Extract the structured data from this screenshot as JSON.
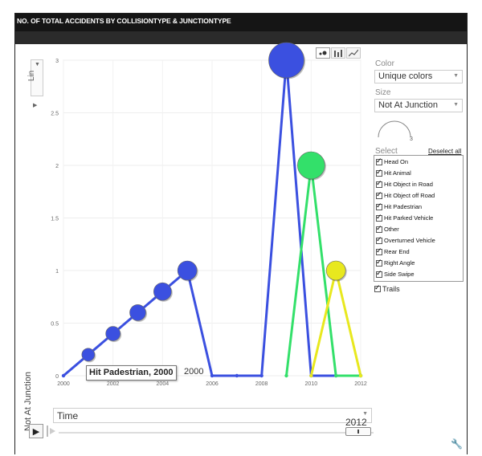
{
  "header": {
    "title": "NO. OF TOTAL ACCIDENTS BY COLLISIONTYPE & JUNCTIONTYPE"
  },
  "chart_controls": {
    "scale_label": "Lin",
    "view_icons": [
      "bubble-view-icon",
      "bar-view-icon",
      "line-view-icon"
    ]
  },
  "side_panel": {
    "color_label": "Color",
    "color_value": "Unique colors",
    "size_label": "Size",
    "size_value": "Not At Junction",
    "size_gauge_value": "3",
    "select_label": "Select",
    "deselect_all": "Deselect all",
    "items": [
      "Head On",
      "Hit Animal",
      "Hit Object in Road",
      "Hit Object off Road",
      "Hit Padestrian",
      "Hit Parked Vehicle",
      "Other",
      "Overturned Vehicle",
      "Rear End",
      "Right Angle",
      "Side Swipe"
    ],
    "trails_label": "Trails"
  },
  "playback": {
    "time_dim": "Time",
    "current_time": "2012"
  },
  "tooltip": {
    "text": "Hit Padestrian, 2000",
    "echo": "2000"
  },
  "colors": {
    "blue": "#3b50e0",
    "green": "#33e06a",
    "yellow": "#e8e81e"
  },
  "chart_data": {
    "type": "scatter",
    "subtype": "motion-bubble",
    "ylabel": "Not At Junction",
    "xlim": [
      2000,
      2012
    ],
    "ylim": [
      0,
      3
    ],
    "x_ticks": [
      "2000",
      "2002",
      "2004",
      "2006",
      "2008",
      "2010",
      "2012"
    ],
    "y_ticks": [
      "0",
      "0.5",
      "1",
      "1.5",
      "2",
      "2.5",
      "3"
    ],
    "grid": true,
    "series": [
      {
        "name": "Hit Padestrian",
        "color": "#3b50e0",
        "x": [
          2000,
          2001,
          2002,
          2003,
          2004,
          2005,
          2006,
          2007,
          2008,
          2009,
          2010,
          2011,
          2012
        ],
        "y": [
          0,
          0.2,
          0.4,
          0.6,
          0.8,
          1,
          0,
          0,
          0,
          3,
          0,
          0,
          0
        ]
      },
      {
        "color": "#33e06a",
        "x": [
          2009,
          2010,
          2011,
          2012
        ],
        "y": [
          0,
          2,
          0,
          0
        ]
      },
      {
        "color": "#e8e81e",
        "x": [
          2010,
          2011,
          2012
        ],
        "y": [
          0,
          1,
          0
        ]
      }
    ]
  }
}
